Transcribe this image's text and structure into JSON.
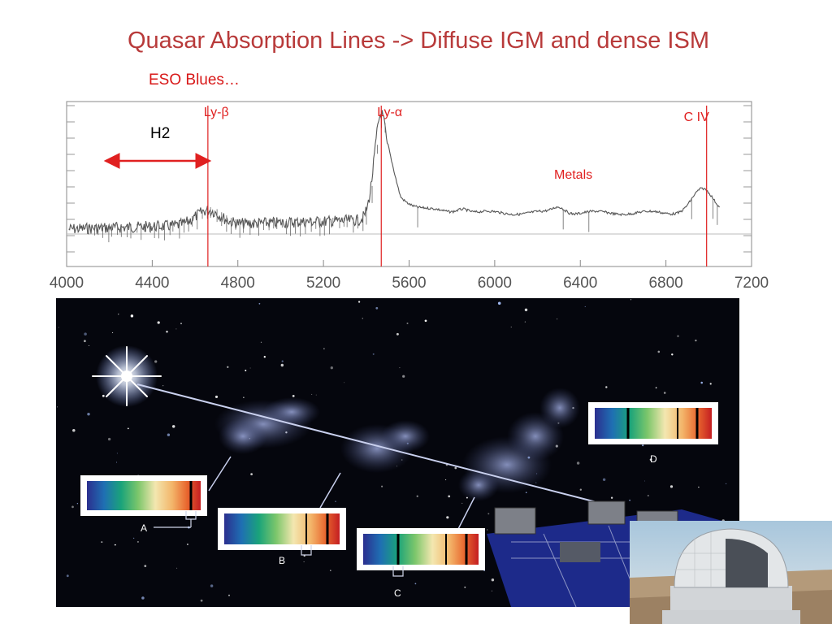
{
  "slide": {
    "title": "Quasar Absorption Lines ->  Diffuse IGM and dense ISM",
    "subtitle": "ESO Blues…"
  },
  "colors": {
    "title": "#b83a3a",
    "annotation_red": "#e02020",
    "spectrum": "#555555",
    "space_background": "#05060d"
  },
  "spectrum_plot": {
    "x_ticks": [
      "4000",
      "4400",
      "4800",
      "5200",
      "5600",
      "6000",
      "6400",
      "6800",
      "7200"
    ],
    "x_range": [
      4000,
      7200
    ],
    "lines": [
      {
        "label": "Ly-β",
        "wavelength": 4660
      },
      {
        "label": "Ly-α",
        "wavelength": 5470
      },
      {
        "label": "C IV",
        "wavelength": 6990
      }
    ],
    "h2_label": "H2",
    "h2_range": [
      4160,
      4690
    ],
    "metals_label": "Metals"
  },
  "illustration": {
    "spectra_labels": [
      "A",
      "B",
      "C",
      "D"
    ],
    "icons": [
      "quasar-star-icon",
      "gas-cloud-icon",
      "telescope-icon"
    ]
  }
}
